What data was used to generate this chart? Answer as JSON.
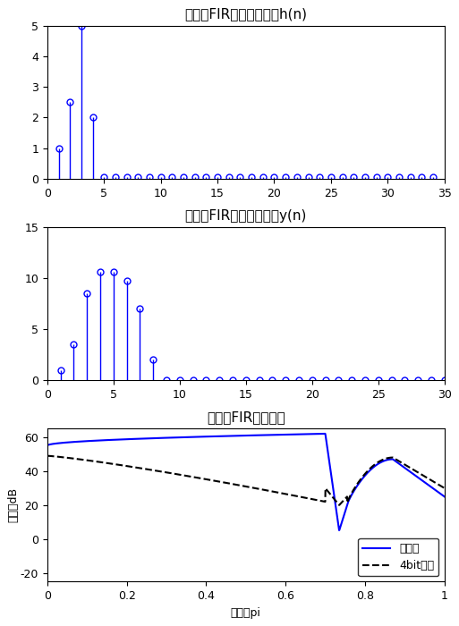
{
  "title1": "级联型FIR单位冲激响应h(n)",
  "title2": "级联型FIR单位阶跃响应y(n)",
  "title3": "级联型FIR频率响应",
  "plot1": {
    "x": [
      1,
      2,
      3,
      4,
      5,
      6,
      7,
      8,
      9,
      10,
      11,
      12,
      13,
      14,
      15,
      16,
      17,
      18,
      19,
      20,
      21,
      22,
      23,
      24,
      25,
      26,
      27,
      28,
      29,
      30,
      31,
      32,
      33,
      34
    ],
    "y": [
      1.0,
      2.5,
      5.0,
      2.0,
      0.05,
      0.05,
      0.05,
      0.05,
      0.05,
      0.05,
      0.05,
      0.05,
      0.05,
      0.05,
      0.05,
      0.05,
      0.05,
      0.05,
      0.05,
      0.05,
      0.05,
      0.05,
      0.05,
      0.05,
      0.05,
      0.05,
      0.05,
      0.05,
      0.05,
      0.05,
      0.05,
      0.05,
      0.05,
      0.05
    ],
    "xlim": [
      0,
      35
    ],
    "ylim": [
      0,
      5
    ],
    "yticks": [
      0,
      1,
      2,
      3,
      4,
      5
    ],
    "xticks": [
      0,
      5,
      10,
      15,
      20,
      25,
      30,
      35
    ]
  },
  "plot2": {
    "x": [
      1,
      2,
      3,
      4,
      5,
      6,
      7,
      8,
      9,
      10,
      11,
      12,
      13,
      14,
      15,
      16,
      17,
      18,
      19,
      20,
      21,
      22,
      23,
      24,
      25,
      26,
      27,
      28,
      29,
      30
    ],
    "y": [
      1.0,
      3.5,
      8.5,
      10.6,
      10.6,
      9.7,
      7.0,
      2.0,
      0.05,
      0.05,
      0.05,
      0.05,
      0.05,
      0.05,
      0.05,
      0.05,
      0.05,
      0.05,
      0.05,
      0.05,
      0.05,
      0.05,
      0.05,
      0.05,
      0.05,
      0.05,
      0.05,
      0.05,
      0.05,
      0.05
    ],
    "xlim": [
      0,
      30
    ],
    "ylim": [
      0,
      15
    ],
    "yticks": [
      0,
      5,
      10,
      15
    ],
    "xticks": [
      0,
      5,
      10,
      15,
      20,
      25,
      30
    ]
  },
  "plot3": {
    "xlim": [
      0,
      1
    ],
    "ylim": [
      -25,
      65
    ],
    "yticks": [
      -20,
      0,
      20,
      40,
      60
    ],
    "xticks": [
      0,
      0.2,
      0.4,
      0.6,
      0.8,
      1.0
    ],
    "xticklabels": [
      "0",
      "0.2",
      "0.4",
      "0.6",
      "0.8",
      "1"
    ],
    "xlabel": "单位：pi",
    "ylabel": "单位：dB"
  },
  "legend_labels": [
    "量化前",
    "4bit量化"
  ],
  "line_color_before": "#0000FF",
  "line_color_after": "#000000",
  "stem_color": "#0000FF",
  "bg_color": "#FFFFFF"
}
